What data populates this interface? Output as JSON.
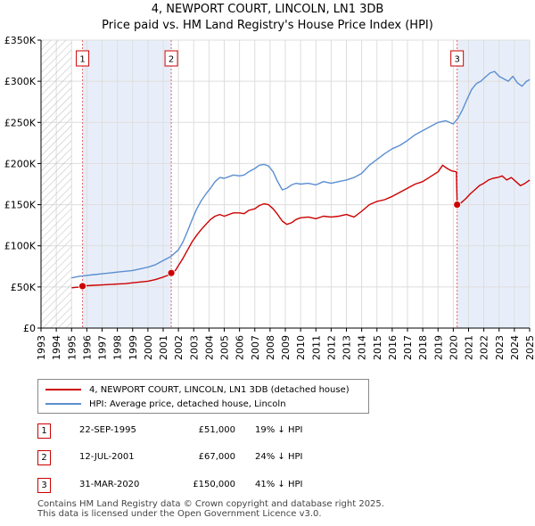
{
  "title": "4, NEWPORT COURT, LINCOLN, LN1 3DB",
  "subtitle": "Price paid vs. HM Land Registry's House Price Index (HPI)",
  "chart_data": {
    "type": "line",
    "xlim": [
      1993,
      2025
    ],
    "ylim": [
      0,
      350000
    ],
    "x_ticks": [
      "1993",
      "1994",
      "1995",
      "1996",
      "1997",
      "1998",
      "1999",
      "2000",
      "2001",
      "2002",
      "2003",
      "2004",
      "2005",
      "2006",
      "2007",
      "2008",
      "2009",
      "2010",
      "2011",
      "2012",
      "2013",
      "2014",
      "2015",
      "2016",
      "2017",
      "2018",
      "2019",
      "2020",
      "2021",
      "2022",
      "2023",
      "2024",
      "2025"
    ],
    "y_ticks": [
      {
        "value": 0,
        "label": "£0"
      },
      {
        "value": 50000,
        "label": "£50K"
      },
      {
        "value": 100000,
        "label": "£100K"
      },
      {
        "value": 150000,
        "label": "£150K"
      },
      {
        "value": 200000,
        "label": "£200K"
      },
      {
        "value": 250000,
        "label": "£250K"
      },
      {
        "value": 300000,
        "label": "£300K"
      },
      {
        "value": 350000,
        "label": "£350K"
      }
    ],
    "grid": true,
    "hatched_before": 1995.0,
    "shaded_intervals": [
      [
        1995.72,
        2001.53
      ],
      [
        2020.25,
        2025.0
      ]
    ],
    "colors": {
      "property": "#cc0000",
      "hpi": "#5b8fd1",
      "shade": "#e8eef9",
      "grid": "#dddddd",
      "marker_line": "#e06666"
    },
    "series": [
      {
        "name": "4, NEWPORT COURT, LINCOLN, LN1 3DB (detached house)",
        "x": [
          1995.0,
          1995.5,
          1995.72,
          1996.0,
          1996.5,
          1997.0,
          1997.5,
          1998.0,
          1998.5,
          1999.0,
          1999.5,
          2000.0,
          2000.5,
          2001.0,
          2001.3,
          2001.53,
          2001.8,
          2002.0,
          2002.3,
          2002.6,
          2002.9,
          2003.2,
          2003.5,
          2003.8,
          2004.1,
          2004.4,
          2004.7,
          2005.0,
          2005.3,
          2005.6,
          2006.0,
          2006.3,
          2006.6,
          2007.0,
          2007.3,
          2007.6,
          2007.9,
          2008.2,
          2008.5,
          2008.8,
          2009.1,
          2009.4,
          2009.7,
          2010.0,
          2010.5,
          2011.0,
          2011.5,
          2012.0,
          2012.5,
          2013.0,
          2013.5,
          2014.0,
          2014.5,
          2015.0,
          2015.5,
          2016.0,
          2016.5,
          2017.0,
          2017.5,
          2018.0,
          2018.5,
          2019.0,
          2019.3,
          2019.6,
          2019.9,
          2020.2,
          2020.25,
          2020.5,
          2020.8,
          2021.1,
          2021.4,
          2021.7,
          2022.0,
          2022.3,
          2022.6,
          2022.9,
          2023.2,
          2023.5,
          2023.8,
          2024.1,
          2024.4,
          2024.7,
          2025.0
        ],
        "values": [
          49000,
          50000,
          51000,
          51500,
          52000,
          52500,
          53000,
          53500,
          54000,
          55000,
          56000,
          57000,
          59000,
          62000,
          64000,
          67000,
          70000,
          76000,
          85000,
          95000,
          105000,
          113000,
          120000,
          126000,
          132000,
          136000,
          138000,
          136000,
          138000,
          140000,
          140000,
          139000,
          143000,
          145000,
          149000,
          151000,
          150000,
          145000,
          138000,
          130000,
          126000,
          128000,
          132000,
          134000,
          135000,
          133000,
          136000,
          135000,
          136000,
          138000,
          135000,
          142000,
          150000,
          154000,
          156000,
          160000,
          165000,
          170000,
          175000,
          178000,
          184000,
          190000,
          198000,
          194000,
          191000,
          190000,
          150000,
          152000,
          157000,
          163000,
          168000,
          173000,
          176000,
          180000,
          182000,
          183000,
          185000,
          180000,
          183000,
          178000,
          173000,
          176000,
          180000
        ]
      },
      {
        "name": "HPI: Average price, detached house, Lincoln",
        "x": [
          1995.0,
          1995.5,
          1996.0,
          1996.5,
          1997.0,
          1997.5,
          1998.0,
          1998.5,
          1999.0,
          1999.5,
          2000.0,
          2000.5,
          2001.0,
          2001.5,
          2002.0,
          2002.3,
          2002.6,
          2002.9,
          2003.2,
          2003.5,
          2003.8,
          2004.1,
          2004.4,
          2004.7,
          2005.0,
          2005.3,
          2005.6,
          2006.0,
          2006.3,
          2006.6,
          2007.0,
          2007.3,
          2007.6,
          2007.9,
          2008.2,
          2008.5,
          2008.8,
          2009.1,
          2009.4,
          2009.7,
          2010.0,
          2010.5,
          2011.0,
          2011.5,
          2012.0,
          2012.5,
          2013.0,
          2013.5,
          2014.0,
          2014.5,
          2015.0,
          2015.5,
          2016.0,
          2016.5,
          2017.0,
          2017.5,
          2018.0,
          2018.5,
          2019.0,
          2019.5,
          2020.0,
          2020.3,
          2020.6,
          2020.9,
          2021.2,
          2021.5,
          2021.8,
          2022.1,
          2022.4,
          2022.7,
          2023.0,
          2023.3,
          2023.6,
          2023.9,
          2024.2,
          2024.5,
          2024.8,
          2025.0
        ],
        "values": [
          61000,
          63000,
          64000,
          65000,
          66000,
          67000,
          68000,
          69000,
          70000,
          72000,
          74000,
          77000,
          82000,
          87000,
          95000,
          105000,
          118000,
          132000,
          145000,
          155000,
          163000,
          170000,
          178000,
          183000,
          182000,
          184000,
          186000,
          185000,
          186000,
          190000,
          194000,
          198000,
          199000,
          197000,
          190000,
          178000,
          168000,
          170000,
          174000,
          176000,
          175000,
          176000,
          174000,
          178000,
          176000,
          178000,
          180000,
          183000,
          188000,
          198000,
          205000,
          212000,
          218000,
          222000,
          228000,
          235000,
          240000,
          245000,
          250000,
          252000,
          248000,
          255000,
          265000,
          278000,
          290000,
          297000,
          300000,
          305000,
          310000,
          312000,
          306000,
          303000,
          300000,
          306000,
          298000,
          294000,
          300000,
          302000
        ]
      }
    ],
    "markers": [
      {
        "label": "1",
        "x": 1995.72,
        "y": 51000
      },
      {
        "label": "2",
        "x": 2001.53,
        "y": 67000
      },
      {
        "label": "3",
        "x": 2020.25,
        "y": 150000
      }
    ]
  },
  "legend": {
    "items": [
      {
        "label": "4, NEWPORT COURT, LINCOLN, LN1 3DB (detached house)"
      },
      {
        "label": "HPI: Average price, detached house, Lincoln"
      }
    ]
  },
  "transactions": [
    {
      "num": "1",
      "date": "22-SEP-1995",
      "price": "£51,000",
      "hpi": "19% ↓ HPI"
    },
    {
      "num": "2",
      "date": "12-JUL-2001",
      "price": "£67,000",
      "hpi": "24% ↓ HPI"
    },
    {
      "num": "3",
      "date": "31-MAR-2020",
      "price": "£150,000",
      "hpi": "41% ↓ HPI"
    }
  ],
  "footer": {
    "line1": "Contains HM Land Registry data © Crown copyright and database right 2025.",
    "line2": "This data is licensed under the Open Government Licence v3.0."
  }
}
